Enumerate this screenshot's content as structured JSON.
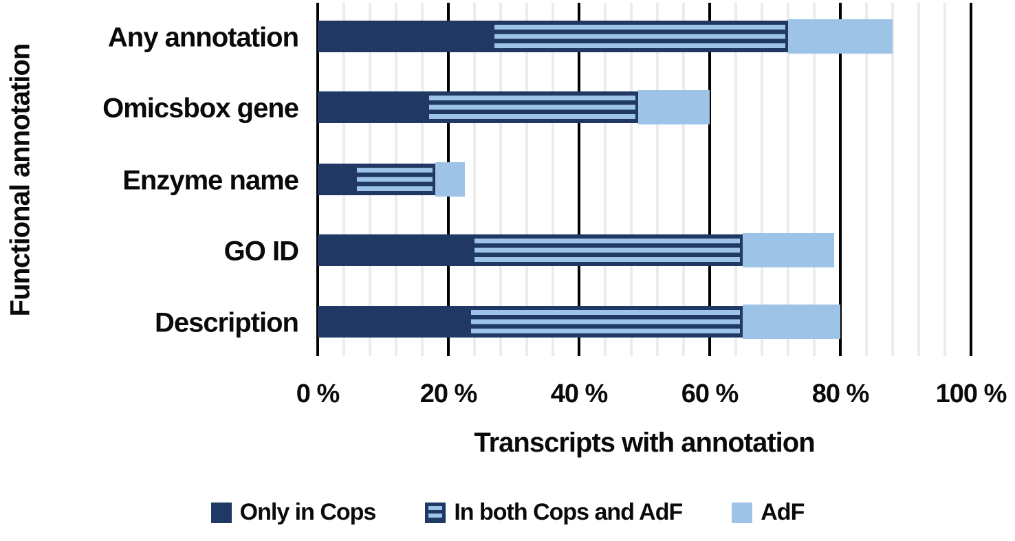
{
  "colors": {
    "dark_navy": "#1f3864",
    "light_blue": "#9dc3e6",
    "major_gridline": "#000000",
    "minor_gridline": "#ececec",
    "text": "#0a0a0a"
  },
  "axes": {
    "y_title": "Functional annotation",
    "x_title": "Transcripts with annotation"
  },
  "chart_data": {
    "type": "bar",
    "orientation": "horizontal",
    "stacked": true,
    "title": "",
    "xlabel": "Transcripts with annotation",
    "ylabel": "Functional annotation",
    "categories": [
      "Any annotation",
      "Omicsbox gene",
      "Enzyme name",
      "GO ID",
      "Description"
    ],
    "series": [
      {
        "name": "Only in Cops",
        "pattern": "solid",
        "color": "#1f3864",
        "values": [
          27,
          17,
          6,
          24,
          23.5
        ]
      },
      {
        "name": "In both Cops and AdF",
        "pattern": "horizontal-stripes",
        "stripe_colors": [
          "#9dc3e6",
          "#1f3864"
        ],
        "values": [
          45,
          32,
          12,
          41,
          41.5
        ]
      },
      {
        "name": "AdF",
        "pattern": "solid",
        "color": "#9dc3e6",
        "values": [
          16,
          11,
          4.5,
          14,
          15
        ]
      }
    ],
    "cumulative_totals": [
      88,
      60,
      22.5,
      79,
      80
    ],
    "xlim": [
      0,
      100
    ],
    "xtick_values": [
      0,
      20,
      40,
      60,
      80,
      100
    ],
    "xtick_labels": [
      "0 %",
      "20 %",
      "40 %",
      "60 %",
      "80 %",
      "100 %"
    ],
    "minor_grid_step": 4,
    "major_grid_step": 20,
    "grid": true,
    "legend_position": "bottom"
  }
}
